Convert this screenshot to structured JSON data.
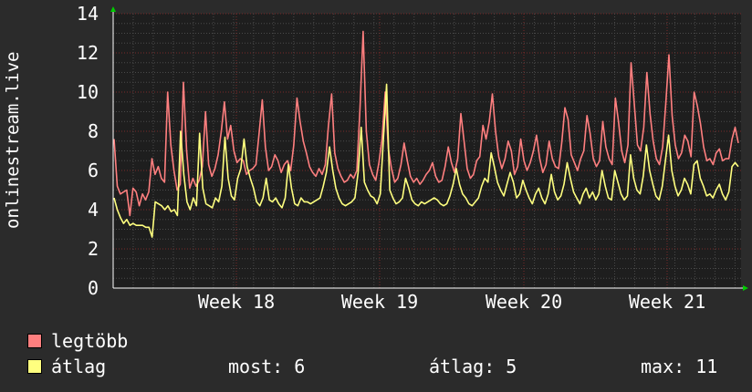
{
  "chart_data": {
    "type": "line",
    "ylabel": "onlinestream.live",
    "ylim": [
      0,
      14
    ],
    "yticks": [
      0,
      2,
      4,
      6,
      8,
      10,
      12,
      14
    ],
    "xticks": [
      "Week 18",
      "Week 19",
      "Week 20",
      "Week 21"
    ],
    "grid": true,
    "series": [
      {
        "name": "legtöbb",
        "color": "#ff7f7f",
        "values": [
          7.6,
          5.2,
          4.8,
          4.9,
          5.0,
          3.7,
          5.1,
          4.9,
          4.2,
          4.8,
          4.5,
          4.9,
          6.6,
          5.8,
          6.2,
          5.6,
          5.4,
          10.0,
          7.3,
          6.0,
          5.0,
          5.3,
          10.5,
          7.0,
          5.1,
          5.6,
          5.2,
          5.5,
          6.2,
          9.0,
          6.3,
          5.7,
          6.1,
          6.8,
          8.0,
          9.5,
          7.6,
          8.3,
          7.0,
          6.4,
          6.6,
          6.5,
          5.8,
          6.0,
          6.1,
          6.3,
          7.9,
          9.6,
          7.2,
          6.0,
          6.2,
          6.8,
          6.5,
          5.9,
          6.3,
          6.5,
          6.0,
          7.3,
          9.7,
          8.5,
          7.5,
          6.9,
          6.2,
          5.9,
          5.7,
          6.1,
          5.8,
          6.3,
          8.3,
          9.9,
          6.9,
          6.1,
          5.7,
          5.4,
          5.5,
          5.8,
          5.6,
          6.0,
          9.2,
          13.1,
          8.0,
          6.3,
          5.8,
          5.5,
          6.4,
          7.6,
          10.0,
          7.1,
          6.1,
          5.4,
          5.6,
          6.3,
          7.4,
          6.5,
          5.7,
          5.4,
          5.6,
          5.3,
          5.5,
          5.8,
          6.0,
          6.4,
          5.7,
          5.4,
          5.5,
          6.2,
          7.2,
          6.4,
          5.9,
          6.6,
          8.9,
          7.5,
          6.1,
          5.6,
          5.8,
          6.5,
          6.7,
          8.3,
          7.6,
          8.5,
          9.9,
          8.0,
          6.7,
          6.1,
          6.6,
          7.5,
          7.0,
          5.8,
          6.2,
          7.6,
          6.5,
          6.0,
          6.4,
          7.0,
          7.8,
          6.6,
          5.9,
          6.3,
          7.5,
          6.6,
          6.2,
          6.1,
          7.4,
          9.2,
          8.6,
          6.8,
          6.4,
          6.0,
          6.6,
          7.0,
          8.8,
          7.9,
          6.6,
          6.2,
          6.5,
          8.5,
          7.2,
          6.6,
          6.3,
          9.7,
          8.5,
          7.0,
          6.4,
          7.3,
          11.5,
          9.4,
          7.3,
          7.0,
          8.2,
          11.0,
          8.9,
          7.5,
          6.6,
          6.3,
          7.2,
          9.4,
          11.9,
          8.8,
          7.3,
          6.6,
          6.9,
          7.8,
          7.5,
          6.7,
          10.0,
          9.3,
          8.4,
          7.2,
          6.5,
          6.6,
          6.3,
          6.9,
          7.1,
          6.5,
          6.6,
          6.6,
          7.6,
          8.2,
          7.4
        ]
      },
      {
        "name": "átlag",
        "color": "#ffff7f",
        "values": [
          4.6,
          4.0,
          3.6,
          3.3,
          3.5,
          3.2,
          3.3,
          3.2,
          3.2,
          3.2,
          3.1,
          3.1,
          2.6,
          4.4,
          4.3,
          4.2,
          4.0,
          4.2,
          3.9,
          4.0,
          3.7,
          8.0,
          5.8,
          4.4,
          4.0,
          4.6,
          4.2,
          7.9,
          5.1,
          4.3,
          4.2,
          4.1,
          4.6,
          4.4,
          5.2,
          7.7,
          5.6,
          4.7,
          4.5,
          5.6,
          6.1,
          7.6,
          6.2,
          5.6,
          5.1,
          4.4,
          4.2,
          4.6,
          5.6,
          4.5,
          4.4,
          4.6,
          4.3,
          4.1,
          4.6,
          6.3,
          5.1,
          4.3,
          4.2,
          4.6,
          4.4,
          4.4,
          4.3,
          4.4,
          4.5,
          4.6,
          5.2,
          5.9,
          7.2,
          6.0,
          5.1,
          4.6,
          4.3,
          4.2,
          4.3,
          4.4,
          4.6,
          5.9,
          8.2,
          5.4,
          5.0,
          4.7,
          4.6,
          4.3,
          4.8,
          7.6,
          10.4,
          5.0,
          4.6,
          4.3,
          4.4,
          4.6,
          5.6,
          5.1,
          4.5,
          4.3,
          4.2,
          4.4,
          4.3,
          4.4,
          4.5,
          4.6,
          4.5,
          4.3,
          4.2,
          4.3,
          4.7,
          5.3,
          6.1,
          5.3,
          4.8,
          4.6,
          4.3,
          4.2,
          4.4,
          4.6,
          5.2,
          5.6,
          5.4,
          6.9,
          6.2,
          5.4,
          5.0,
          4.7,
          5.3,
          5.9,
          5.4,
          4.6,
          4.8,
          5.5,
          5.0,
          4.6,
          4.3,
          4.8,
          5.1,
          4.6,
          4.3,
          4.8,
          5.8,
          4.9,
          4.5,
          4.7,
          5.3,
          6.4,
          5.6,
          4.9,
          4.6,
          4.3,
          4.8,
          5.1,
          4.6,
          4.9,
          4.5,
          4.8,
          6.0,
          5.2,
          4.6,
          4.5,
          6.0,
          5.4,
          4.8,
          4.5,
          4.7,
          6.8,
          5.6,
          5.0,
          4.8,
          5.7,
          7.3,
          6.0,
          5.3,
          4.7,
          4.5,
          5.2,
          6.5,
          7.8,
          6.0,
          5.2,
          4.7,
          5.0,
          5.6,
          5.3,
          4.8,
          6.3,
          6.5,
          5.6,
          5.2,
          4.7,
          4.8,
          4.6,
          5.0,
          5.3,
          4.8,
          4.5,
          4.9,
          6.2,
          6.4,
          6.2
        ]
      }
    ],
    "stats": {
      "most_label": "most:",
      "most_value": "6",
      "avg_label": "átlag:",
      "avg_value": "5",
      "max_label": "max:",
      "max_value": "11"
    }
  }
}
